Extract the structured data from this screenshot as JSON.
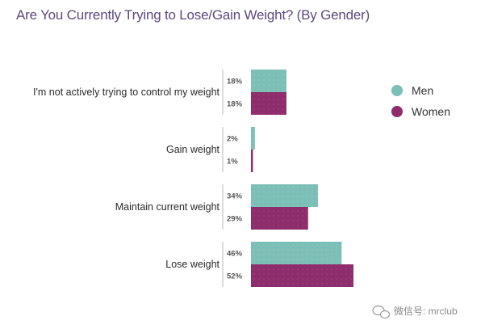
{
  "chart_data": {
    "type": "bar",
    "orientation": "horizontal",
    "title": "Are You Currently Trying to Lose/Gain Weight? (By Gender)",
    "categories": [
      "I'm not actively trying to control my weight",
      "Gain weight",
      "Maintain current weight",
      "Lose weight"
    ],
    "series": [
      {
        "name": "Men",
        "color": "#7cbfb6",
        "values": [
          18,
          2,
          34,
          46
        ],
        "labels": [
          "18%",
          "2%",
          "34%",
          "46%"
        ]
      },
      {
        "name": "Women",
        "color": "#8e2d6c",
        "values": [
          18,
          1,
          29,
          52
        ],
        "labels": [
          "18%",
          "1%",
          "29%",
          "52%"
        ]
      }
    ],
    "xlim": [
      0,
      60
    ],
    "grid": false,
    "legend_position": "right"
  },
  "watermark": {
    "text": "微信号: mrclub"
  }
}
